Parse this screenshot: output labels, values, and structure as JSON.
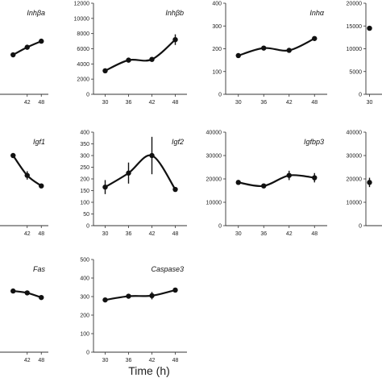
{
  "figure": {
    "xlabel": "Time (h)"
  },
  "chart_data": [
    {
      "type": "line",
      "title": "Inhβa",
      "categories": [
        "42",
        "48"
      ],
      "ylim": null,
      "yticks": [],
      "x": [
        36,
        42,
        48
      ],
      "values": [
        5200,
        6200,
        7000
      ],
      "errors": [
        150,
        250,
        150
      ]
    },
    {
      "type": "line",
      "title": "Inhβb",
      "categories": [
        "30",
        "36",
        "42",
        "48"
      ],
      "ylim": [
        0,
        12000
      ],
      "yticks": [
        "0",
        "2000",
        "4000",
        "6000",
        "8000",
        "10000",
        "12000"
      ],
      "x": [
        30,
        36,
        42,
        48
      ],
      "values": [
        3100,
        4500,
        4600,
        7200
      ],
      "errors": [
        100,
        100,
        150,
        700
      ]
    },
    {
      "type": "line",
      "title": "Inhα",
      "categories": [
        "30",
        "36",
        "42",
        "48"
      ],
      "ylim": [
        0,
        400
      ],
      "yticks": [
        "0",
        "100",
        "200",
        "300",
        "400"
      ],
      "x": [
        30,
        36,
        42,
        48
      ],
      "values": [
        170,
        203,
        193,
        245
      ],
      "errors": [
        4,
        6,
        6,
        5
      ]
    },
    {
      "type": "line",
      "title": "",
      "categories": [
        "30"
      ],
      "ylim": [
        0,
        20000
      ],
      "yticks": [
        "0",
        "5000",
        "10000",
        "15000",
        "20000"
      ],
      "x": [
        30
      ],
      "values": [
        14500
      ],
      "errors": [
        400
      ]
    },
    {
      "type": "line",
      "title": "Igf1",
      "categories": [
        "42",
        "48"
      ],
      "ylim": null,
      "yticks": [],
      "x": [
        36,
        42,
        48
      ],
      "values": [
        300,
        215,
        170
      ],
      "errors": [
        10,
        18,
        5
      ]
    },
    {
      "type": "line",
      "title": "Igf2",
      "categories": [
        "30",
        "36",
        "42",
        "48"
      ],
      "ylim": [
        0,
        400
      ],
      "yticks": [
        "0",
        "50",
        "100",
        "150",
        "200",
        "250",
        "300",
        "350",
        "400"
      ],
      "x": [
        30,
        36,
        42,
        48
      ],
      "values": [
        165,
        225,
        300,
        155
      ],
      "errors": [
        30,
        45,
        80,
        5
      ]
    },
    {
      "type": "line",
      "title": "Igfbp3",
      "categories": [
        "30",
        "36",
        "42",
        "48"
      ],
      "ylim": [
        0,
        40000
      ],
      "yticks": [
        "0",
        "10000",
        "20000",
        "30000",
        "40000"
      ],
      "x": [
        30,
        36,
        42,
        48
      ],
      "values": [
        18500,
        17000,
        21500,
        20500
      ],
      "errors": [
        400,
        400,
        2000,
        2000
      ]
    },
    {
      "type": "line",
      "title": "",
      "categories": [],
      "ylim": [
        0,
        40000
      ],
      "yticks": [
        "0",
        "10000",
        "20000",
        "30000",
        "40000"
      ],
      "x": [
        30
      ],
      "values": [
        18500
      ],
      "errors": [
        2000
      ]
    },
    {
      "type": "line",
      "title": "Fas",
      "categories": [
        "42",
        "48"
      ],
      "ylim": null,
      "yticks": [],
      "x": [
        36,
        42,
        48
      ],
      "values": [
        330,
        320,
        295
      ],
      "errors": [
        5,
        5,
        5
      ]
    },
    {
      "type": "line",
      "title": "Caspase3",
      "categories": [
        "30",
        "36",
        "42",
        "48"
      ],
      "ylim": [
        0,
        500
      ],
      "yticks": [
        "0",
        "100",
        "200",
        "300",
        "400",
        "500"
      ],
      "x": [
        30,
        36,
        42,
        48
      ],
      "values": [
        282,
        302,
        305,
        335
      ],
      "errors": [
        5,
        8,
        20,
        7
      ]
    }
  ]
}
